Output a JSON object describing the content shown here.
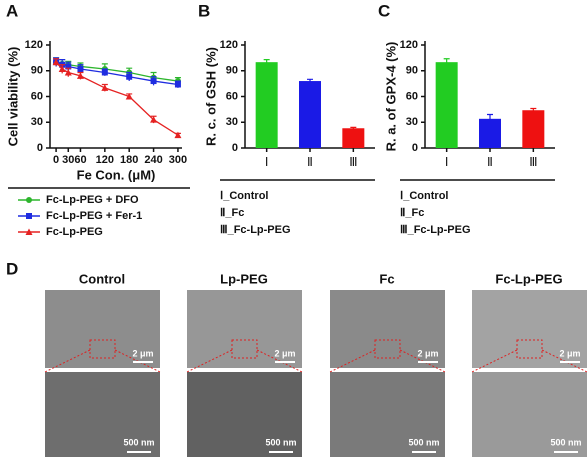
{
  "panel_labels": [
    "A",
    "B",
    "C",
    "D"
  ],
  "chart_data": [
    {
      "type": "line",
      "x_label": "Fe Con. (μM)",
      "y_label": "Cell viability (%)",
      "x": [
        0,
        15,
        30,
        60,
        120,
        180,
        240,
        300
      ],
      "xlim": [
        -15,
        310
      ],
      "xticks": [
        0,
        30,
        60,
        120,
        180,
        240,
        300
      ],
      "ylim": [
        0,
        120
      ],
      "yticks": [
        0,
        30,
        60,
        90,
        120
      ],
      "series": [
        {
          "name": "Fc-Lp-PEG + DFO",
          "color": "#2db52d",
          "marker": "circle",
          "values": [
            100,
            98,
            97,
            95,
            92,
            88,
            82,
            78
          ],
          "errors": [
            5,
            5,
            4,
            4,
            6,
            5,
            6,
            4
          ]
        },
        {
          "name": "Fc-Lp-PEG + Fer-1",
          "color": "#1f2de0",
          "marker": "square",
          "values": [
            100,
            97,
            95,
            92,
            88,
            83,
            78,
            74
          ],
          "errors": [
            5,
            6,
            5,
            5,
            4,
            5,
            5,
            4
          ]
        },
        {
          "name": "Fc-Lp-PEG",
          "color": "#e52222",
          "marker": "triangle",
          "values": [
            100,
            92,
            88,
            84,
            70,
            60,
            33,
            15
          ],
          "errors": [
            4,
            5,
            5,
            4,
            4,
            3,
            4,
            2
          ]
        }
      ]
    },
    {
      "type": "bar",
      "y_label": "R. c. of GSH (%)",
      "categories": [
        "Ⅰ",
        "Ⅱ",
        "Ⅲ"
      ],
      "values": [
        100,
        78,
        23
      ],
      "errors": [
        3,
        2,
        1
      ],
      "colors": [
        "#22cc22",
        "#1a1ae6",
        "#ee1111"
      ],
      "ylim": [
        0,
        120
      ],
      "yticks": [
        0,
        30,
        60,
        90,
        120
      ],
      "notes": [
        "Ⅰ_Control",
        "Ⅱ_Fc",
        "Ⅲ_Fc-Lp-PEG"
      ]
    },
    {
      "type": "bar",
      "y_label": "R. a. of GPX-4 (%)",
      "categories": [
        "Ⅰ",
        "Ⅱ",
        "Ⅲ"
      ],
      "values": [
        100,
        34,
        44
      ],
      "errors": [
        4,
        5,
        2
      ],
      "colors": [
        "#22cc22",
        "#1a1ae6",
        "#ee1111"
      ],
      "ylim": [
        0,
        120
      ],
      "yticks": [
        0,
        30,
        60,
        90,
        120
      ],
      "notes": [
        "Ⅰ_Control",
        "Ⅱ_Fc",
        "Ⅲ_Fc-Lp-PEG"
      ]
    }
  ],
  "micrographs": [
    {
      "title": "Control",
      "scale_top": "2 μm",
      "scale_bottom": "500 nm"
    },
    {
      "title": "Lp-PEG",
      "scale_top": "2 μm",
      "scale_bottom": "500 nm"
    },
    {
      "title": "Fc",
      "scale_top": "2 μm",
      "scale_bottom": "500 nm"
    },
    {
      "title": "Fc-Lp-PEG",
      "scale_top": "2 μm",
      "scale_bottom": "500 nm"
    }
  ]
}
